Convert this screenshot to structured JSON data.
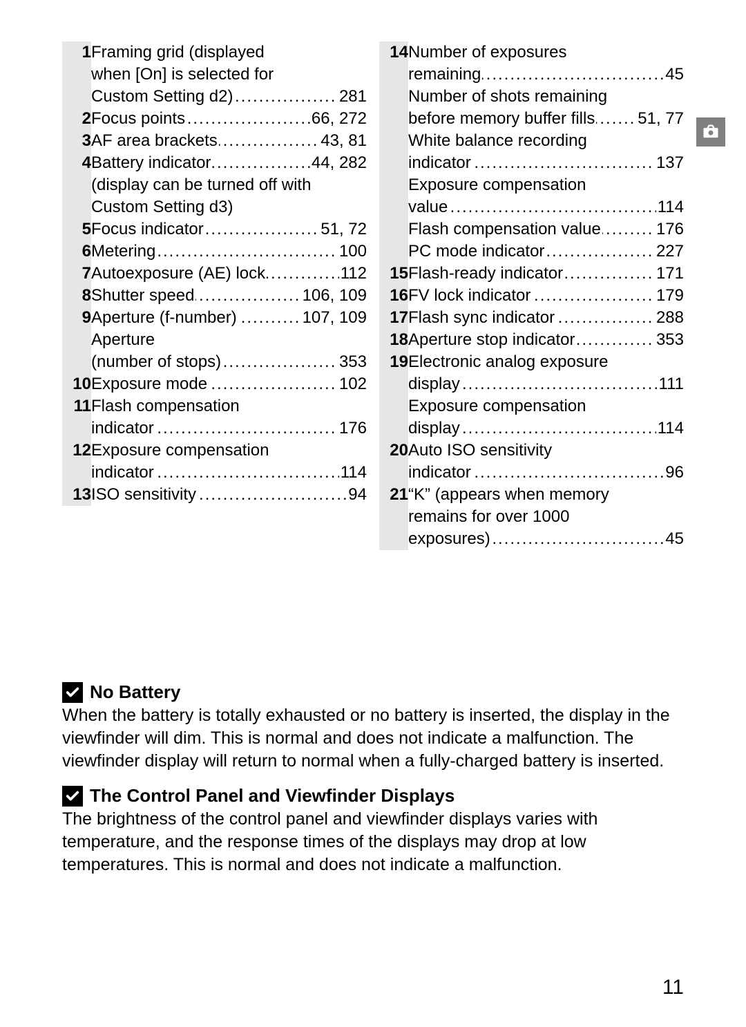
{
  "page_number": "11",
  "left_items": [
    {
      "num": "1",
      "lines": [
        {
          "text": "Framing grid (displayed",
          "page": "",
          "leader": false
        },
        {
          "text": "when [On] is selected for",
          "page": "",
          "leader": false
        },
        {
          "text": "Custom Setting d2)",
          "page": "281",
          "leader": true
        }
      ]
    },
    {
      "num": "2",
      "lines": [
        {
          "text": "Focus points",
          "page": "66, 272",
          "leader": true
        }
      ]
    },
    {
      "num": "3",
      "lines": [
        {
          "text": "AF area brackets",
          "page": "43, 81",
          "leader": true
        }
      ]
    },
    {
      "num": "4",
      "lines": [
        {
          "text": "Battery indicator",
          "page": "44, 282",
          "leader": true
        },
        {
          "text": "(display can be turned off with",
          "page": "",
          "leader": false
        },
        {
          "text": "Custom Setting d3)",
          "page": "",
          "leader": false
        }
      ]
    },
    {
      "num": "5",
      "lines": [
        {
          "text": "Focus indicator",
          "page": "51, 72",
          "leader": true
        }
      ]
    },
    {
      "num": "6",
      "lines": [
        {
          "text": "Metering",
          "page": "100",
          "leader": true
        }
      ]
    },
    {
      "num": "7",
      "lines": [
        {
          "text": "Autoexposure (AE) lock",
          "page": "112",
          "leader": true
        }
      ]
    },
    {
      "num": "8",
      "lines": [
        {
          "text": "Shutter speed",
          "page": "106, 109",
          "leader": true
        }
      ]
    },
    {
      "num": "9",
      "lines": [
        {
          "text": "Aperture (f-number)",
          "page": "107, 109",
          "leader": true
        },
        {
          "text": "Aperture",
          "page": "",
          "leader": false
        },
        {
          "text": "(number of stops)",
          "page": "353",
          "leader": true
        }
      ]
    },
    {
      "num": "10",
      "lines": [
        {
          "text": "Exposure mode",
          "page": "102",
          "leader": true
        }
      ]
    },
    {
      "num": "11",
      "lines": [
        {
          "text": "Flash compensation",
          "page": "",
          "leader": false
        },
        {
          "text": "indicator",
          "page": "176",
          "leader": true
        }
      ]
    },
    {
      "num": "12",
      "lines": [
        {
          "text": "Exposure compensation",
          "page": "",
          "leader": false
        },
        {
          "text": "indicator",
          "page": "114",
          "leader": true
        }
      ]
    },
    {
      "num": "13",
      "lines": [
        {
          "text": "ISO sensitivity",
          "page": "94",
          "leader": true
        }
      ]
    }
  ],
  "right_items": [
    {
      "num": "14",
      "lines": [
        {
          "text": "Number of exposures",
          "page": "",
          "leader": false
        },
        {
          "text": "remaining",
          "page": "45",
          "leader": true
        },
        {
          "text": "Number of shots remaining",
          "page": "",
          "leader": false
        },
        {
          "text": "before memory buffer fills",
          "page": "51, 77",
          "leader": true
        },
        {
          "text": "White balance recording",
          "page": "",
          "leader": false
        },
        {
          "text": "indicator",
          "page": "137",
          "leader": true
        },
        {
          "text": "Exposure compensation",
          "page": "",
          "leader": false
        },
        {
          "text": "value",
          "page": "114",
          "leader": true
        },
        {
          "text": "Flash compensation value",
          "page": "176",
          "leader": true
        },
        {
          "text": "PC mode indicator",
          "page": "227",
          "leader": true
        }
      ]
    },
    {
      "num": "15",
      "lines": [
        {
          "text": "Flash-ready indicator",
          "page": "171",
          "leader": true
        }
      ]
    },
    {
      "num": "16",
      "lines": [
        {
          "text": "FV lock indicator",
          "page": "179",
          "leader": true
        }
      ]
    },
    {
      "num": "17",
      "lines": [
        {
          "text": "Flash sync indicator",
          "page": "288",
          "leader": true
        }
      ]
    },
    {
      "num": "18",
      "lines": [
        {
          "text": "Aperture stop indicator",
          "page": "353",
          "leader": true
        }
      ]
    },
    {
      "num": "19",
      "lines": [
        {
          "text": "Electronic analog exposure",
          "page": "",
          "leader": false
        },
        {
          "text": "display",
          "page": "111",
          "leader": true
        },
        {
          "text": "Exposure compensation",
          "page": "",
          "leader": false
        },
        {
          "text": "display",
          "page": "114",
          "leader": true
        }
      ]
    },
    {
      "num": "20",
      "lines": [
        {
          "text": "Auto ISO sensitivity",
          "page": "",
          "leader": false
        },
        {
          "text": "indicator",
          "page": "96",
          "leader": true
        }
      ]
    },
    {
      "num": "21",
      "lines": [
        {
          "text": "“K” (appears when memory",
          "page": "",
          "leader": false
        },
        {
          "text": "remains for over 1000",
          "page": "",
          "leader": false
        },
        {
          "text": "exposures)",
          "page": "45",
          "leader": true
        }
      ]
    }
  ],
  "notes": [
    {
      "title": "No Battery",
      "body": "When the battery is totally exhausted or no battery is inserted, the display in the viewfinder will dim.  This is normal and does not indicate a malfunction.  The viewfinder display will return to normal when a fully-charged battery is inserted."
    },
    {
      "title": "The Control Panel and Viewfinder Displays",
      "body": "The brightness of the control panel and viewfinder displays varies with temperature, and the response times of the displays may drop at low temperatures.  This is normal and does not indicate a malfunction."
    }
  ]
}
